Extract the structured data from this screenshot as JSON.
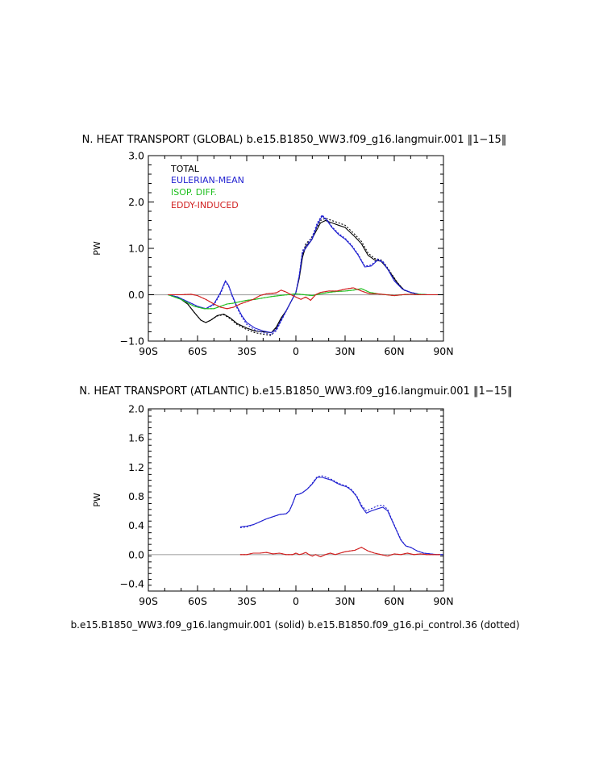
{
  "footer": "b.e15.B1850_WW3.f09_g16.langmuir.001 (solid) b.e15.B1850.f09_g16.pi_control.36 (dotted)",
  "chart_data": [
    {
      "type": "line",
      "title": "N. HEAT TRANSPORT (GLOBAL) b.e15.B1850_WW3.f09_g16.langmuir.001 ‖1−15‖",
      "xlabel": "",
      "ylabel": "PW",
      "xlim": [
        -90,
        90
      ],
      "ylim": [
        -1.0,
        3.0
      ],
      "yticks": [
        -1.0,
        0.0,
        1.0,
        2.0,
        3.0
      ],
      "ytick_labels": [
        "−1.0",
        "0.0",
        "1.0",
        "2.0",
        "3.0"
      ],
      "xticks": [
        -90,
        -60,
        -30,
        0,
        30,
        60,
        90
      ],
      "xtick_labels": [
        "90S",
        "60S",
        "30S",
        "0",
        "30N",
        "60N",
        "90N"
      ],
      "grid": false,
      "legend_position": "top-left",
      "series": [
        {
          "name": "TOTAL",
          "color": "#000000",
          "x": [
            -78,
            -72,
            -66,
            -62,
            -58,
            -55,
            -52,
            -48,
            -44,
            -40,
            -36,
            -30,
            -25,
            -20,
            -15,
            -12,
            -9,
            -6,
            -3,
            0,
            2,
            4,
            6,
            9,
            12,
            15,
            18,
            22,
            26,
            30,
            33,
            36,
            40,
            44,
            48,
            52,
            55,
            58,
            62,
            66,
            70,
            75,
            80,
            85,
            88
          ],
          "y": [
            0.0,
            -0.05,
            -0.2,
            -0.38,
            -0.55,
            -0.6,
            -0.55,
            -0.45,
            -0.42,
            -0.5,
            -0.62,
            -0.72,
            -0.78,
            -0.8,
            -0.82,
            -0.7,
            -0.5,
            -0.35,
            -0.15,
            0.05,
            0.35,
            0.8,
            1.05,
            1.15,
            1.35,
            1.55,
            1.6,
            1.55,
            1.5,
            1.45,
            1.35,
            1.25,
            1.1,
            0.85,
            0.75,
            0.72,
            0.6,
            0.45,
            0.25,
            0.1,
            0.05,
            0.01,
            0.0,
            0.0,
            0.0
          ],
          "y_dotted": [
            0.0,
            -0.05,
            -0.2,
            -0.38,
            -0.55,
            -0.6,
            -0.55,
            -0.46,
            -0.43,
            -0.52,
            -0.64,
            -0.75,
            -0.82,
            -0.85,
            -0.88,
            -0.72,
            -0.52,
            -0.36,
            -0.15,
            0.05,
            0.38,
            0.85,
            1.1,
            1.2,
            1.4,
            1.6,
            1.65,
            1.6,
            1.55,
            1.5,
            1.4,
            1.3,
            1.15,
            0.9,
            0.78,
            0.75,
            0.63,
            0.47,
            0.26,
            0.1,
            0.05,
            0.01,
            0.0,
            0.0,
            0.0
          ]
        },
        {
          "name": "EULERIAN-MEAN",
          "color": "#1f1fd0",
          "x": [
            -78,
            -72,
            -66,
            -60,
            -55,
            -50,
            -46,
            -43,
            -41,
            -39,
            -36,
            -33,
            -30,
            -25,
            -20,
            -15,
            -12,
            -9,
            -6,
            -3,
            0,
            2,
            4,
            7,
            10,
            13,
            16,
            19,
            22,
            26,
            30,
            34,
            38,
            42,
            46,
            50,
            53,
            56,
            60,
            65,
            70,
            75,
            80,
            85,
            88
          ],
          "y": [
            0.0,
            -0.05,
            -0.15,
            -0.25,
            -0.3,
            -0.2,
            0.05,
            0.3,
            0.2,
            0.0,
            -0.25,
            -0.45,
            -0.6,
            -0.72,
            -0.78,
            -0.82,
            -0.75,
            -0.55,
            -0.35,
            -0.15,
            0.05,
            0.4,
            0.9,
            1.05,
            1.2,
            1.5,
            1.7,
            1.6,
            1.45,
            1.3,
            1.2,
            1.05,
            0.85,
            0.6,
            0.62,
            0.75,
            0.7,
            0.55,
            0.3,
            0.12,
            0.05,
            0.01,
            0.0,
            0.0,
            0.0
          ],
          "y_dotted": [
            0.0,
            -0.05,
            -0.15,
            -0.25,
            -0.3,
            -0.22,
            0.02,
            0.28,
            0.18,
            -0.02,
            -0.28,
            -0.48,
            -0.64,
            -0.76,
            -0.82,
            -0.86,
            -0.78,
            -0.57,
            -0.36,
            -0.15,
            0.05,
            0.42,
            0.95,
            1.1,
            1.25,
            1.55,
            1.72,
            1.62,
            1.47,
            1.32,
            1.22,
            1.07,
            0.87,
            0.62,
            0.64,
            0.77,
            0.72,
            0.56,
            0.31,
            0.12,
            0.05,
            0.01,
            0.0,
            0.0,
            0.0
          ]
        },
        {
          "name": "ISOP. DIFF.",
          "color": "#1fbf1f",
          "x": [
            -78,
            -70,
            -62,
            -56,
            -50,
            -46,
            -42,
            -38,
            -34,
            -30,
            -25,
            -20,
            -15,
            -10,
            -5,
            0,
            5,
            10,
            15,
            20,
            25,
            30,
            35,
            40,
            45,
            50,
            55,
            60,
            65,
            70,
            75,
            80,
            88
          ],
          "y": [
            0.0,
            -0.1,
            -0.25,
            -0.3,
            -0.3,
            -0.25,
            -0.2,
            -0.18,
            -0.15,
            -0.12,
            -0.1,
            -0.07,
            -0.04,
            -0.02,
            0.0,
            0.02,
            0.0,
            -0.02,
            0.02,
            0.05,
            0.07,
            0.08,
            0.1,
            0.13,
            0.05,
            0.02,
            0.0,
            -0.02,
            0.0,
            0.01,
            0.01,
            0.0,
            0.0
          ],
          "y_dotted": [
            0.0,
            -0.1,
            -0.25,
            -0.3,
            -0.3,
            -0.25,
            -0.2,
            -0.18,
            -0.15,
            -0.12,
            -0.1,
            -0.07,
            -0.04,
            -0.02,
            0.0,
            0.02,
            0.0,
            -0.02,
            0.02,
            0.05,
            0.07,
            0.08,
            0.1,
            0.13,
            0.05,
            0.02,
            0.0,
            -0.02,
            0.0,
            0.01,
            0.01,
            0.0,
            0.0
          ]
        },
        {
          "name": "EDDY-INDUCED",
          "color": "#d01f1f",
          "x": [
            -78,
            -70,
            -64,
            -60,
            -55,
            -50,
            -46,
            -42,
            -38,
            -34,
            -30,
            -26,
            -22,
            -18,
            -15,
            -12,
            -9,
            -6,
            -3,
            0,
            3,
            6,
            9,
            12,
            15,
            20,
            25,
            30,
            35,
            40,
            45,
            50,
            55,
            60,
            65,
            70,
            75,
            80,
            88
          ],
          "y": [
            0.0,
            0.0,
            0.01,
            -0.02,
            -0.1,
            -0.2,
            -0.27,
            -0.3,
            -0.27,
            -0.2,
            -0.15,
            -0.1,
            -0.02,
            0.02,
            0.03,
            0.04,
            0.1,
            0.06,
            0.0,
            -0.05,
            -0.1,
            -0.05,
            -0.12,
            0.0,
            0.05,
            0.08,
            0.08,
            0.12,
            0.15,
            0.08,
            0.02,
            0.02,
            0.0,
            -0.02,
            0.0,
            0.01,
            0.0,
            0.0,
            0.0
          ],
          "y_dotted": [
            0.0,
            0.0,
            0.01,
            -0.02,
            -0.1,
            -0.2,
            -0.27,
            -0.3,
            -0.27,
            -0.2,
            -0.15,
            -0.1,
            -0.02,
            0.02,
            0.03,
            0.04,
            0.1,
            0.06,
            0.0,
            -0.05,
            -0.1,
            -0.05,
            -0.12,
            0.0,
            0.05,
            0.08,
            0.08,
            0.12,
            0.15,
            0.08,
            0.02,
            0.02,
            0.0,
            -0.02,
            0.0,
            0.01,
            0.0,
            0.0,
            0.0
          ]
        }
      ]
    },
    {
      "type": "line",
      "title": "N. HEAT TRANSPORT (ATLANTIC) b.e15.B1850_WW3.f09_g16.langmuir.001 ‖1−15‖",
      "xlabel": "",
      "ylabel": "PW",
      "xlim": [
        -90,
        90
      ],
      "ylim": [
        -0.5,
        2.0
      ],
      "yticks": [
        -0.4,
        0.0,
        0.4,
        0.8,
        1.2,
        1.6,
        2.0
      ],
      "ytick_labels": [
        "−0.4",
        "0.0",
        "0.4",
        "0.8",
        "1.2",
        "1.6",
        "2.0"
      ],
      "xticks": [
        -90,
        -60,
        -30,
        0,
        30,
        60,
        90
      ],
      "xtick_labels": [
        "90S",
        "60S",
        "30S",
        "0",
        "30N",
        "60N",
        "90N"
      ],
      "grid": false,
      "series": [
        {
          "name": "",
          "color": "#1f1fd0",
          "x": [
            -34,
            -30,
            -26,
            -22,
            -18,
            -14,
            -10,
            -6,
            -4,
            -2,
            0,
            2,
            4,
            7,
            10,
            13,
            16,
            19,
            22,
            25,
            28,
            31,
            34,
            37,
            40,
            43,
            46,
            50,
            53,
            56,
            58,
            61,
            64,
            67,
            70,
            74,
            78,
            82,
            86,
            90
          ],
          "y": [
            0.38,
            0.39,
            0.41,
            0.45,
            0.49,
            0.52,
            0.55,
            0.56,
            0.6,
            0.7,
            0.82,
            0.83,
            0.85,
            0.9,
            0.97,
            1.06,
            1.06,
            1.04,
            1.02,
            0.98,
            0.95,
            0.93,
            0.88,
            0.8,
            0.66,
            0.57,
            0.6,
            0.63,
            0.65,
            0.6,
            0.5,
            0.35,
            0.2,
            0.12,
            0.1,
            0.05,
            0.02,
            0.01,
            0.0,
            0.0
          ],
          "y_dotted": [
            0.37,
            0.38,
            0.41,
            0.45,
            0.49,
            0.52,
            0.55,
            0.56,
            0.6,
            0.7,
            0.82,
            0.83,
            0.85,
            0.9,
            0.98,
            1.07,
            1.08,
            1.06,
            1.03,
            0.99,
            0.96,
            0.94,
            0.89,
            0.81,
            0.68,
            0.6,
            0.63,
            0.67,
            0.68,
            0.62,
            0.51,
            0.36,
            0.21,
            0.12,
            0.1,
            0.05,
            0.02,
            0.01,
            0.0,
            0.0
          ]
        },
        {
          "name": "",
          "color": "#d01f1f",
          "x": [
            -34,
            -30,
            -26,
            -22,
            -18,
            -14,
            -10,
            -6,
            -2,
            0,
            2,
            4,
            6,
            8,
            10,
            12,
            15,
            18,
            21,
            24,
            27,
            30,
            33,
            36,
            40,
            44,
            48,
            52,
            56,
            60,
            64,
            68,
            72,
            76,
            80,
            84,
            88
          ],
          "y": [
            0.0,
            0.0,
            0.02,
            0.02,
            0.03,
            0.01,
            0.02,
            0.0,
            0.0,
            0.02,
            0.0,
            0.01,
            0.03,
            0.0,
            -0.02,
            0.0,
            -0.03,
            0.0,
            0.02,
            0.0,
            0.02,
            0.04,
            0.05,
            0.06,
            0.1,
            0.05,
            0.02,
            0.0,
            -0.02,
            0.01,
            0.0,
            0.02,
            0.0,
            0.01,
            0.0,
            0.0,
            0.0
          ],
          "y_dotted": [
            0.0,
            0.0,
            0.02,
            0.02,
            0.03,
            0.01,
            0.02,
            0.0,
            0.0,
            0.02,
            0.0,
            0.01,
            0.03,
            0.0,
            -0.02,
            0.0,
            -0.03,
            0.0,
            0.02,
            0.0,
            0.02,
            0.04,
            0.05,
            0.06,
            0.1,
            0.05,
            0.02,
            0.0,
            -0.02,
            0.01,
            0.0,
            0.02,
            0.0,
            0.01,
            0.0,
            0.0,
            0.0
          ]
        }
      ]
    }
  ]
}
